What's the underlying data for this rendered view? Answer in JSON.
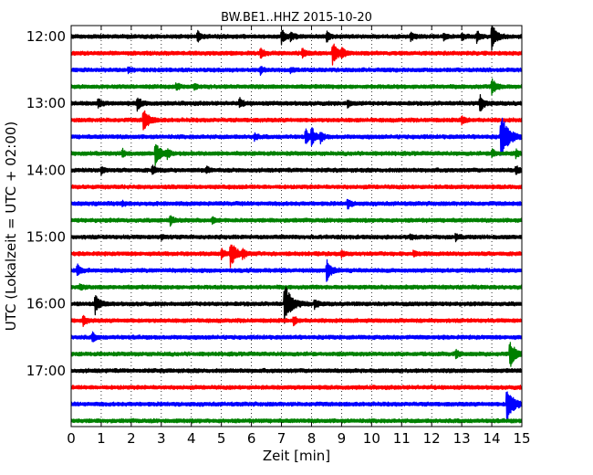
{
  "chart_data": {
    "type": "line",
    "title": "BW.BE1..HHZ 2015-10-20",
    "xlabel": "Zeit  [min]",
    "ylabel": "UTC (Lokalzeit = UTC + 02:00)",
    "xlim": [
      0,
      15
    ],
    "x_ticks": [
      "0",
      "1",
      "2",
      "3",
      "4",
      "5",
      "6",
      "7",
      "8",
      "9",
      "10",
      "11",
      "12",
      "13",
      "14",
      "15"
    ],
    "y_ticks": [
      "12:00",
      "13:00",
      "14:00",
      "15:00",
      "16:00",
      "17:00"
    ],
    "grid": "vertical dotted lines at each minute",
    "row_start": "12:00",
    "row_interval_minutes": 15,
    "row_colors": [
      "#000000",
      "#ff0000",
      "#0000ff",
      "#008000"
    ],
    "series": [
      {
        "start": "12:00",
        "events": [
          {
            "t": 4.2,
            "amp": 0.35
          },
          {
            "t": 7.0,
            "amp": 0.45
          },
          {
            "t": 7.3,
            "amp": 0.3
          },
          {
            "t": 8.5,
            "amp": 0.35
          },
          {
            "t": 11.3,
            "amp": 0.3
          },
          {
            "t": 12.4,
            "amp": 0.25
          },
          {
            "t": 13.0,
            "amp": 0.25
          },
          {
            "t": 13.5,
            "amp": 0.35
          },
          {
            "t": 14.0,
            "amp": 0.8
          }
        ]
      },
      {
        "start": "12:15",
        "events": [
          {
            "t": 6.3,
            "amp": 0.3
          },
          {
            "t": 7.7,
            "amp": 0.3
          },
          {
            "t": 8.7,
            "amp": 0.8
          },
          {
            "t": 9.0,
            "amp": 0.25
          }
        ]
      },
      {
        "start": "12:30",
        "events": [
          {
            "t": 1.9,
            "amp": 0.2
          },
          {
            "t": 6.3,
            "amp": 0.25
          },
          {
            "t": 7.3,
            "amp": 0.15
          }
        ]
      },
      {
        "start": "12:45",
        "events": [
          {
            "t": 3.5,
            "amp": 0.2
          },
          {
            "t": 4.1,
            "amp": 0.2
          },
          {
            "t": 14.0,
            "amp": 0.55
          }
        ]
      },
      {
        "start": "13:00",
        "events": [
          {
            "t": 0.9,
            "amp": 0.3
          },
          {
            "t": 2.2,
            "amp": 0.45
          },
          {
            "t": 5.6,
            "amp": 0.3
          },
          {
            "t": 9.2,
            "amp": 0.25
          },
          {
            "t": 13.6,
            "amp": 0.55
          }
        ]
      },
      {
        "start": "13:15",
        "events": [
          {
            "t": 2.4,
            "amp": 0.8
          },
          {
            "t": 13.0,
            "amp": 0.3
          }
        ]
      },
      {
        "start": "13:30",
        "events": [
          {
            "t": 6.1,
            "amp": 0.2
          },
          {
            "t": 7.8,
            "amp": 0.45
          },
          {
            "t": 8.0,
            "amp": 0.55
          },
          {
            "t": 8.3,
            "amp": 0.3
          },
          {
            "t": 14.3,
            "amp": 1.5
          }
        ]
      },
      {
        "start": "13:45",
        "events": [
          {
            "t": 1.7,
            "amp": 0.25
          },
          {
            "t": 2.8,
            "amp": 0.8
          },
          {
            "t": 3.2,
            "amp": 0.25
          },
          {
            "t": 14.0,
            "amp": 0.3
          },
          {
            "t": 14.8,
            "amp": 0.25
          }
        ]
      },
      {
        "start": "14:00",
        "events": [
          {
            "t": 1.0,
            "amp": 0.25
          },
          {
            "t": 2.7,
            "amp": 0.3
          },
          {
            "t": 4.5,
            "amp": 0.2
          },
          {
            "t": 14.8,
            "amp": 0.3
          }
        ]
      },
      {
        "start": "14:15",
        "events": []
      },
      {
        "start": "14:30",
        "events": [
          {
            "t": 1.7,
            "amp": 0.15
          },
          {
            "t": 9.2,
            "amp": 0.3
          }
        ]
      },
      {
        "start": "14:45",
        "events": [
          {
            "t": 3.3,
            "amp": 0.3
          },
          {
            "t": 4.7,
            "amp": 0.2
          }
        ]
      },
      {
        "start": "15:00",
        "events": [
          {
            "t": 3.0,
            "amp": 0.15
          },
          {
            "t": 11.3,
            "amp": 0.15
          },
          {
            "t": 12.8,
            "amp": 0.2
          }
        ]
      },
      {
        "start": "15:15",
        "events": [
          {
            "t": 5.0,
            "amp": 0.3
          },
          {
            "t": 5.3,
            "amp": 0.9
          },
          {
            "t": 5.7,
            "amp": 0.3
          },
          {
            "t": 9.0,
            "amp": 0.2
          },
          {
            "t": 11.4,
            "amp": 0.2
          }
        ]
      },
      {
        "start": "15:30",
        "events": [
          {
            "t": 0.2,
            "amp": 0.35
          },
          {
            "t": 8.5,
            "amp": 0.7
          }
        ]
      },
      {
        "start": "15:45",
        "events": [
          {
            "t": 0.3,
            "amp": 0.15
          }
        ]
      },
      {
        "start": "16:00",
        "events": [
          {
            "t": 0.8,
            "amp": 0.6
          },
          {
            "t": 7.1,
            "amp": 1.3
          },
          {
            "t": 8.1,
            "amp": 0.3
          }
        ]
      },
      {
        "start": "16:15",
        "events": [
          {
            "t": 0.4,
            "amp": 0.3
          },
          {
            "t": 7.4,
            "amp": 0.3
          }
        ]
      },
      {
        "start": "16:30",
        "events": [
          {
            "t": 0.7,
            "amp": 0.3
          }
        ]
      },
      {
        "start": "16:45",
        "events": [
          {
            "t": 12.8,
            "amp": 0.3
          },
          {
            "t": 14.6,
            "amp": 0.9
          }
        ]
      },
      {
        "start": "17:00",
        "events": []
      },
      {
        "start": "17:15",
        "events": []
      },
      {
        "start": "17:30",
        "events": [
          {
            "t": 14.5,
            "amp": 1.2
          }
        ]
      },
      {
        "start": "17:45",
        "events": []
      }
    ]
  }
}
